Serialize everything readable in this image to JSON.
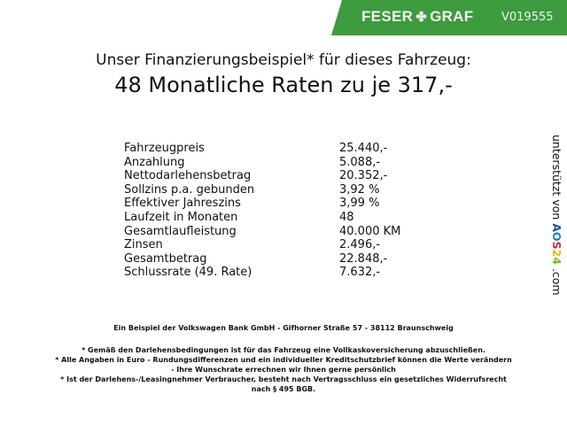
{
  "header": {
    "brand_left": "FESER",
    "brand_right": "GRAF",
    "vehicle_id": "V019555",
    "brand_color": "#3c9b3c"
  },
  "title": {
    "line1": "Unser Finanzierungsbeispiel* für dieses Fahrzeug:",
    "line2": "48 Monatliche Raten zu je 317,-"
  },
  "table": [
    {
      "label": "Fahrzeugpreis",
      "value": "25.440,-"
    },
    {
      "label": "Anzahlung",
      "value": "5.088,-"
    },
    {
      "label": "Nettodarlehensbetrag",
      "value": "20.352,-"
    },
    {
      "label": "Sollzins p.a. gebunden",
      "value": "3,92 %"
    },
    {
      "label": "Effektiver Jahreszins",
      "value": "3,99 %"
    },
    {
      "label": "Laufzeit in Monaten",
      "value": "48"
    },
    {
      "label": "Gesamtlaufleistung",
      "value": "40.000 KM"
    },
    {
      "label": "Zinsen",
      "value": "2.496,-"
    },
    {
      "label": "Gesamtbetrag",
      "value": "22.848,-"
    },
    {
      "label": "Schlussrate (49. Rate)",
      "value": "7.632,-"
    }
  ],
  "side": {
    "text": "unterstützt von",
    "logo": "AOS24",
    "suffix": ".com"
  },
  "footer": {
    "bank": "Ein Beispiel der Volkswagen Bank GmbH - Gifhorner Straße 57 - 38112 Braunschweig",
    "note1": "* Gemäß den Darlehensbedingungen ist für das Fahrzeug eine Vollkaskoversicherung abzuschließen.",
    "note2a": "* Alle Angaben in Euro - Rundungsdifferenzen und ein individueller Kreditschutzbrief können die Werte verändern",
    "note2b": "- Ihre Wunschrate errechnen wir Ihnen gerne persönlich",
    "note3a": "* Ist der Darlehens-/Leasingnehmer Verbraucher, besteht nach Vertragsschluss ein gesetzliches Widerrufsrecht",
    "note3b": "nach § 495 BGB."
  }
}
